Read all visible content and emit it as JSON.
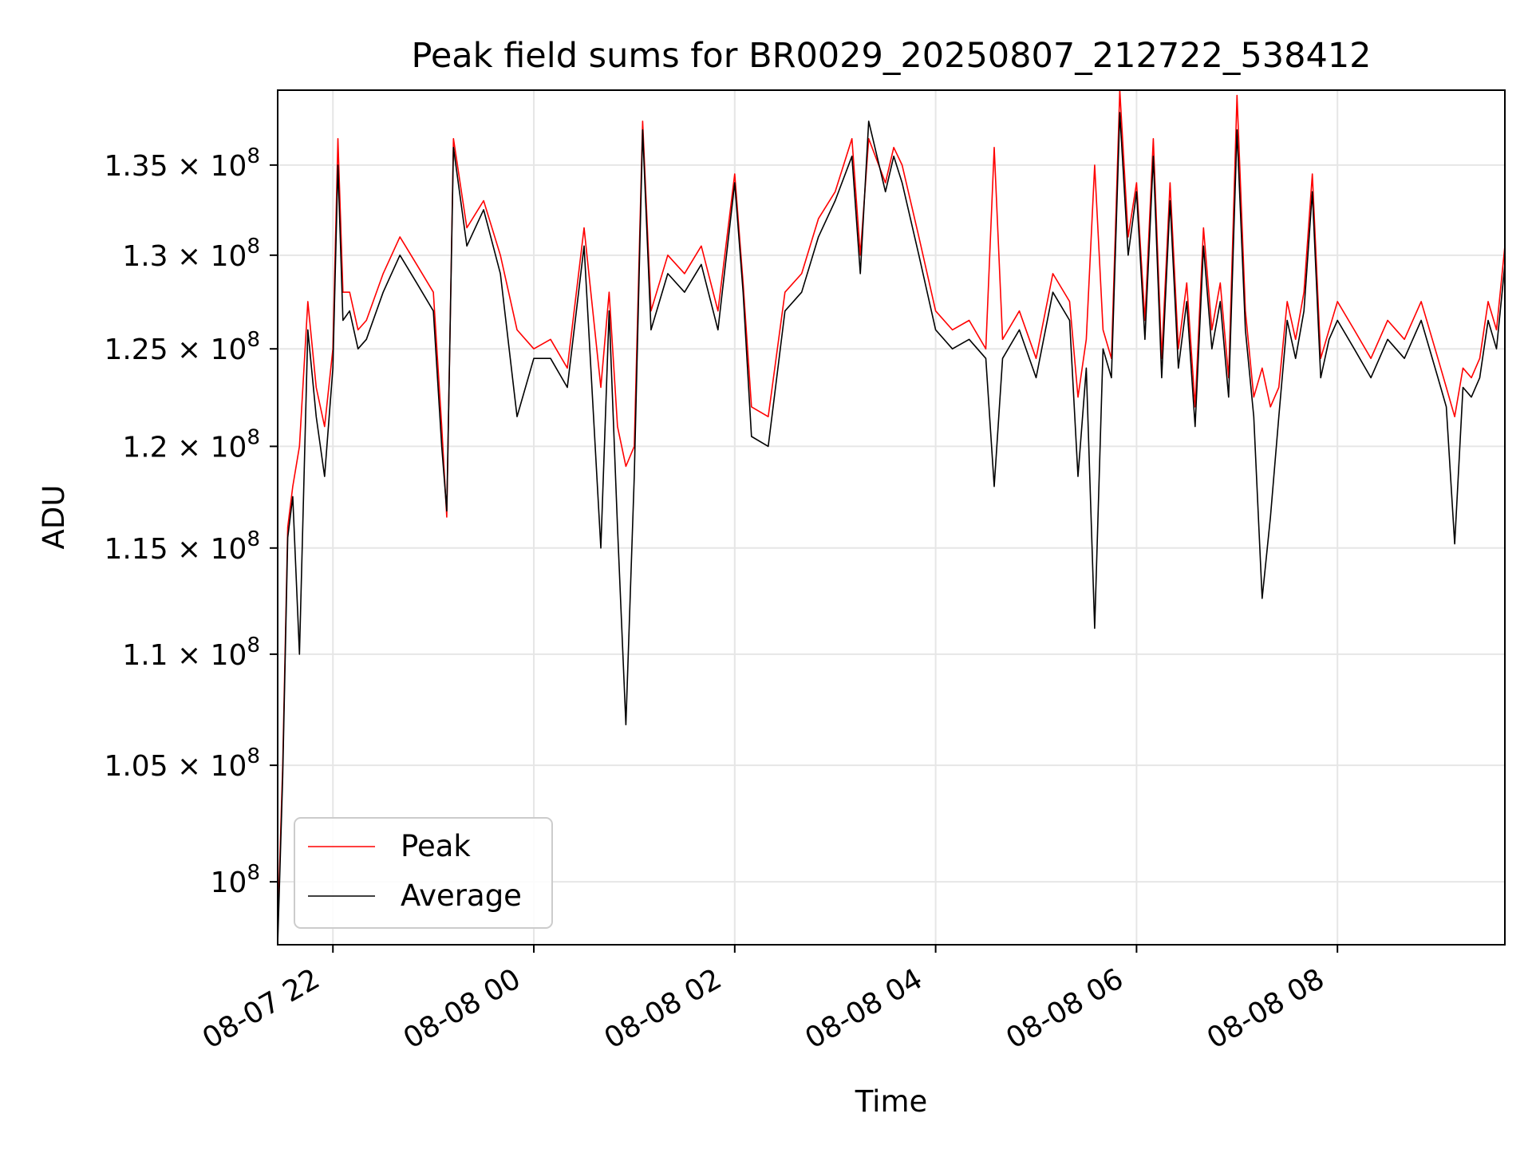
{
  "chart_data": {
    "type": "line",
    "title": "Peak field sums for BR0029_20250807_212722_538412",
    "xlabel": "Time",
    "ylabel": "ADU",
    "y_scale": "log",
    "grid": true,
    "legend_position": "lower-left",
    "xlim": [
      "2025-08-07 21:27",
      "2025-08-08 09:40"
    ],
    "ylim": [
      97400000,
      139300000
    ],
    "x_ticks": [
      {
        "value": "2025-08-07 22:00",
        "label": "08-07 22"
      },
      {
        "value": "2025-08-08 00:00",
        "label": "08-08 00"
      },
      {
        "value": "2025-08-08 02:00",
        "label": "08-08 02"
      },
      {
        "value": "2025-08-08 04:00",
        "label": "08-08 04"
      },
      {
        "value": "2025-08-08 06:00",
        "label": "08-08 06"
      },
      {
        "value": "2025-08-08 08:00",
        "label": "08-08 08"
      }
    ],
    "y_ticks": [
      {
        "value": 100000000,
        "mantissa": "",
        "exponent": "8"
      },
      {
        "value": 105000000,
        "mantissa": "1.05",
        "exponent": "8"
      },
      {
        "value": 110000000,
        "mantissa": "1.1",
        "exponent": "8"
      },
      {
        "value": 115000000,
        "mantissa": "1.15",
        "exponent": "8"
      },
      {
        "value": 120000000,
        "mantissa": "1.2",
        "exponent": "8"
      },
      {
        "value": 125000000,
        "mantissa": "1.25",
        "exponent": "8"
      },
      {
        "value": 130000000,
        "mantissa": "1.3",
        "exponent": "8"
      },
      {
        "value": 135000000,
        "mantissa": "1.35",
        "exponent": "8"
      }
    ],
    "y_tick_times_sign": "×",
    "y_tick_base": "10",
    "series": [
      {
        "name": "Peak",
        "color": "#ff0000",
        "x": [
          "2025-08-07 21:27",
          "2025-08-07 21:30",
          "2025-08-07 21:33",
          "2025-08-07 21:36",
          "2025-08-07 21:40",
          "2025-08-07 21:45",
          "2025-08-07 21:50",
          "2025-08-07 21:55",
          "2025-08-07 22:00",
          "2025-08-07 22:03",
          "2025-08-07 22:06",
          "2025-08-07 22:10",
          "2025-08-07 22:15",
          "2025-08-07 22:20",
          "2025-08-07 22:30",
          "2025-08-07 22:40",
          "2025-08-07 22:50",
          "2025-08-07 23:00",
          "2025-08-07 23:05",
          "2025-08-07 23:08",
          "2025-08-07 23:12",
          "2025-08-07 23:20",
          "2025-08-07 23:30",
          "2025-08-07 23:40",
          "2025-08-07 23:50",
          "2025-08-08 00:00",
          "2025-08-08 00:10",
          "2025-08-08 00:20",
          "2025-08-08 00:30",
          "2025-08-08 00:40",
          "2025-08-08 00:45",
          "2025-08-08 00:50",
          "2025-08-08 00:55",
          "2025-08-08 01:00",
          "2025-08-08 01:05",
          "2025-08-08 01:10",
          "2025-08-08 01:20",
          "2025-08-08 01:30",
          "2025-08-08 01:40",
          "2025-08-08 01:50",
          "2025-08-08 02:00",
          "2025-08-08 02:05",
          "2025-08-08 02:10",
          "2025-08-08 02:20",
          "2025-08-08 02:30",
          "2025-08-08 02:40",
          "2025-08-08 02:50",
          "2025-08-08 03:00",
          "2025-08-08 03:10",
          "2025-08-08 03:15",
          "2025-08-08 03:20",
          "2025-08-08 03:30",
          "2025-08-08 03:35",
          "2025-08-08 03:40",
          "2025-08-08 03:50",
          "2025-08-08 04:00",
          "2025-08-08 04:10",
          "2025-08-08 04:20",
          "2025-08-08 04:30",
          "2025-08-08 04:35",
          "2025-08-08 04:40",
          "2025-08-08 04:50",
          "2025-08-08 05:00",
          "2025-08-08 05:10",
          "2025-08-08 05:20",
          "2025-08-08 05:25",
          "2025-08-08 05:30",
          "2025-08-08 05:35",
          "2025-08-08 05:40",
          "2025-08-08 05:45",
          "2025-08-08 05:50",
          "2025-08-08 05:55",
          "2025-08-08 06:00",
          "2025-08-08 06:05",
          "2025-08-08 06:10",
          "2025-08-08 06:15",
          "2025-08-08 06:20",
          "2025-08-08 06:25",
          "2025-08-08 06:30",
          "2025-08-08 06:35",
          "2025-08-08 06:40",
          "2025-08-08 06:45",
          "2025-08-08 06:50",
          "2025-08-08 06:55",
          "2025-08-08 07:00",
          "2025-08-08 07:05",
          "2025-08-08 07:10",
          "2025-08-08 07:15",
          "2025-08-08 07:20",
          "2025-08-08 07:25",
          "2025-08-08 07:30",
          "2025-08-08 07:35",
          "2025-08-08 07:40",
          "2025-08-08 07:45",
          "2025-08-08 07:50",
          "2025-08-08 07:55",
          "2025-08-08 08:00",
          "2025-08-08 08:10",
          "2025-08-08 08:20",
          "2025-08-08 08:30",
          "2025-08-08 08:40",
          "2025-08-08 08:50",
          "2025-08-08 09:00",
          "2025-08-08 09:05",
          "2025-08-08 09:10",
          "2025-08-08 09:15",
          "2025-08-08 09:20",
          "2025-08-08 09:25",
          "2025-08-08 09:30",
          "2025-08-08 09:35",
          "2025-08-08 09:40"
        ],
        "y": [
          98000000,
          105000000,
          116000000,
          118000000,
          120000000,
          127500000,
          123000000,
          121000000,
          125000000,
          136500000,
          128000000,
          128000000,
          126000000,
          126500000,
          129000000,
          131000000,
          129500000,
          128000000,
          121000000,
          116500000,
          136500000,
          131500000,
          133000000,
          130000000,
          126000000,
          125000000,
          125500000,
          124000000,
          131500000,
          123000000,
          128000000,
          121000000,
          119000000,
          120000000,
          137500000,
          127000000,
          130000000,
          129000000,
          130500000,
          127000000,
          134500000,
          128500000,
          122000000,
          121500000,
          128000000,
          129000000,
          132000000,
          133500000,
          136500000,
          130000000,
          136500000,
          134000000,
          136000000,
          135000000,
          131000000,
          127000000,
          126000000,
          126500000,
          125000000,
          136000000,
          125500000,
          127000000,
          124500000,
          129000000,
          127500000,
          122500000,
          125500000,
          135000000,
          126000000,
          124500000,
          139300000,
          131000000,
          134000000,
          126500000,
          136500000,
          124500000,
          134000000,
          125000000,
          128500000,
          122000000,
          131500000,
          126000000,
          128500000,
          123500000,
          139000000,
          127000000,
          122500000,
          124000000,
          122000000,
          123000000,
          127500000,
          125500000,
          128000000,
          134500000,
          124500000,
          126000000,
          127500000,
          126000000,
          124500000,
          126500000,
          125500000,
          127500000,
          124500000,
          123000000,
          121500000,
          124000000,
          123500000,
          124500000,
          127500000,
          126000000,
          130500000
        ]
      },
      {
        "name": "Average",
        "color": "#000000",
        "x": [
          "2025-08-07 21:27",
          "2025-08-07 21:30",
          "2025-08-07 21:33",
          "2025-08-07 21:36",
          "2025-08-07 21:40",
          "2025-08-07 21:45",
          "2025-08-07 21:50",
          "2025-08-07 21:55",
          "2025-08-07 22:00",
          "2025-08-07 22:03",
          "2025-08-07 22:06",
          "2025-08-07 22:10",
          "2025-08-07 22:15",
          "2025-08-07 22:20",
          "2025-08-07 22:30",
          "2025-08-07 22:40",
          "2025-08-07 22:50",
          "2025-08-07 23:00",
          "2025-08-07 23:05",
          "2025-08-07 23:08",
          "2025-08-07 23:12",
          "2025-08-07 23:20",
          "2025-08-07 23:30",
          "2025-08-07 23:40",
          "2025-08-07 23:50",
          "2025-08-08 00:00",
          "2025-08-08 00:10",
          "2025-08-08 00:20",
          "2025-08-08 00:30",
          "2025-08-08 00:40",
          "2025-08-08 00:45",
          "2025-08-08 00:50",
          "2025-08-08 00:55",
          "2025-08-08 01:00",
          "2025-08-08 01:05",
          "2025-08-08 01:10",
          "2025-08-08 01:20",
          "2025-08-08 01:30",
          "2025-08-08 01:40",
          "2025-08-08 01:50",
          "2025-08-08 02:00",
          "2025-08-08 02:05",
          "2025-08-08 02:10",
          "2025-08-08 02:20",
          "2025-08-08 02:30",
          "2025-08-08 02:40",
          "2025-08-08 02:50",
          "2025-08-08 03:00",
          "2025-08-08 03:10",
          "2025-08-08 03:15",
          "2025-08-08 03:20",
          "2025-08-08 03:30",
          "2025-08-08 03:35",
          "2025-08-08 03:40",
          "2025-08-08 03:50",
          "2025-08-08 04:00",
          "2025-08-08 04:10",
          "2025-08-08 04:20",
          "2025-08-08 04:30",
          "2025-08-08 04:35",
          "2025-08-08 04:40",
          "2025-08-08 04:50",
          "2025-08-08 05:00",
          "2025-08-08 05:10",
          "2025-08-08 05:20",
          "2025-08-08 05:25",
          "2025-08-08 05:30",
          "2025-08-08 05:35",
          "2025-08-08 05:40",
          "2025-08-08 05:45",
          "2025-08-08 05:50",
          "2025-08-08 05:55",
          "2025-08-08 06:00",
          "2025-08-08 06:05",
          "2025-08-08 06:10",
          "2025-08-08 06:15",
          "2025-08-08 06:20",
          "2025-08-08 06:25",
          "2025-08-08 06:30",
          "2025-08-08 06:35",
          "2025-08-08 06:40",
          "2025-08-08 06:45",
          "2025-08-08 06:50",
          "2025-08-08 06:55",
          "2025-08-08 07:00",
          "2025-08-08 07:05",
          "2025-08-08 07:10",
          "2025-08-08 07:15",
          "2025-08-08 07:20",
          "2025-08-08 07:25",
          "2025-08-08 07:30",
          "2025-08-08 07:35",
          "2025-08-08 07:40",
          "2025-08-08 07:45",
          "2025-08-08 07:50",
          "2025-08-08 07:55",
          "2025-08-08 08:00",
          "2025-08-08 08:10",
          "2025-08-08 08:20",
          "2025-08-08 08:30",
          "2025-08-08 08:40",
          "2025-08-08 08:50",
          "2025-08-08 09:00",
          "2025-08-08 09:05",
          "2025-08-08 09:10",
          "2025-08-08 09:15",
          "2025-08-08 09:20",
          "2025-08-08 09:25",
          "2025-08-08 09:30",
          "2025-08-08 09:35",
          "2025-08-08 09:40"
        ],
        "y": [
          97400000,
          104500000,
          115500000,
          117500000,
          110000000,
          126000000,
          121500000,
          118500000,
          124000000,
          135000000,
          126500000,
          127000000,
          125000000,
          125500000,
          128000000,
          130000000,
          128500000,
          127000000,
          120000000,
          116800000,
          136000000,
          130500000,
          132500000,
          129000000,
          121500000,
          124500000,
          124500000,
          123000000,
          130500000,
          115000000,
          127000000,
          116000000,
          106800000,
          118500000,
          137000000,
          126000000,
          129000000,
          128000000,
          129500000,
          126000000,
          134000000,
          128000000,
          120500000,
          120000000,
          127000000,
          128000000,
          131000000,
          133000000,
          135500000,
          129000000,
          137500000,
          133500000,
          135500000,
          134000000,
          130000000,
          126000000,
          125000000,
          125500000,
          124500000,
          118000000,
          124500000,
          126000000,
          123500000,
          128000000,
          126500000,
          118500000,
          124000000,
          111200000,
          125000000,
          123500000,
          138000000,
          130000000,
          133500000,
          125500000,
          135500000,
          123500000,
          133000000,
          124000000,
          127500000,
          121000000,
          130500000,
          125000000,
          127500000,
          122500000,
          137000000,
          126000000,
          121500000,
          112600000,
          116500000,
          121500000,
          126500000,
          124500000,
          127000000,
          133500000,
          123500000,
          125500000,
          126500000,
          125000000,
          123500000,
          125500000,
          124500000,
          126500000,
          123500000,
          122000000,
          115200000,
          123000000,
          122500000,
          123500000,
          126500000,
          125000000,
          129500000
        ]
      }
    ]
  }
}
